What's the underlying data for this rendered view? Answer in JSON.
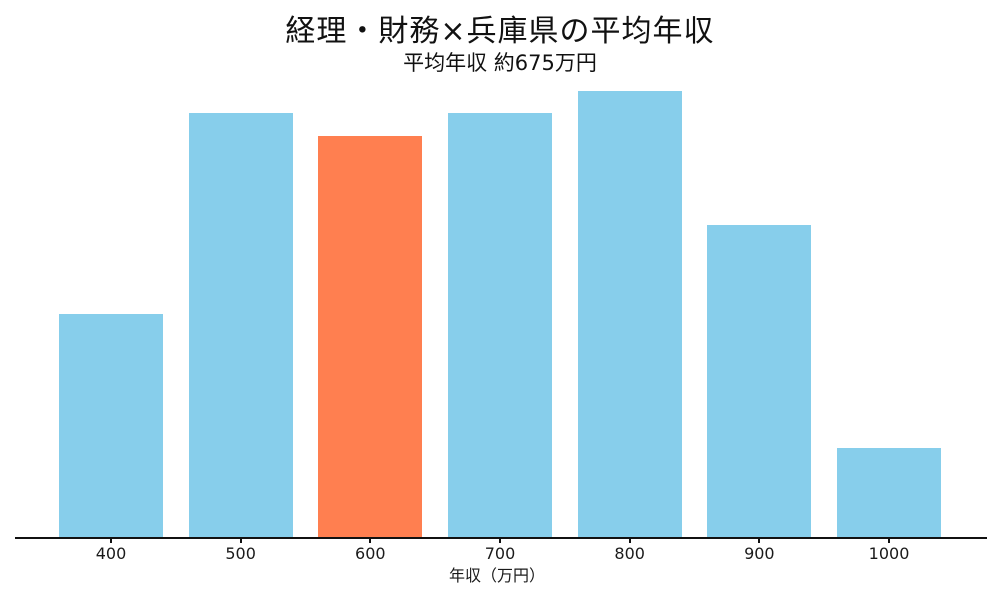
{
  "chart_data": {
    "type": "bar",
    "title": "経理・財務×兵庫県の平均年収",
    "subtitle": "平均年収 約675万円",
    "xlabel": "年収（万円）",
    "categories": [
      "400",
      "500",
      "600",
      "700",
      "800",
      "900",
      "1000"
    ],
    "values": [
      50,
      95,
      90,
      95,
      100,
      70,
      20
    ],
    "ylim": [
      0,
      100
    ],
    "highlight_index": 2,
    "highlight_category": "600",
    "grid": false,
    "legend": false,
    "colors": {
      "bar": "#87CEEB",
      "highlight_bar": "#FF7F50",
      "axis": "#111111",
      "text": "#1a1a1a"
    }
  }
}
